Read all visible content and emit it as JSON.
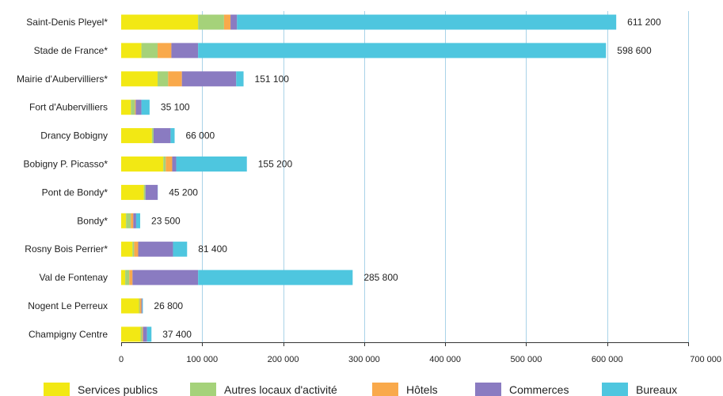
{
  "chart_data": {
    "type": "bar",
    "orientation": "horizontal",
    "stacked": true,
    "categories": [
      "Saint-Denis Pleyel*",
      "Stade de France*",
      "Mairie d'Aubervilliers*",
      "Fort d'Aubervilliers",
      "Drancy Bobigny",
      "Bobigny P. Picasso*",
      "Pont de Bondy*",
      "Bondy*",
      "Rosny Bois Perrier*",
      "Val de Fontenay",
      "Nogent Le Perreux",
      "Champigny Centre"
    ],
    "series": [
      {
        "name": "Services publics",
        "color": "#f2e814",
        "values": [
          95000,
          25000,
          45000,
          12000,
          38000,
          52000,
          28000,
          6000,
          14000,
          5000,
          22000,
          24000
        ]
      },
      {
        "name": "Autres locaux d'activité",
        "color": "#a5d27a",
        "values": [
          32000,
          20000,
          13000,
          5000,
          2000,
          3000,
          2000,
          6000,
          2000,
          5000,
          1000,
          2000
        ]
      },
      {
        "name": "Hôtels",
        "color": "#f9a94b",
        "values": [
          8000,
          17000,
          17000,
          1000,
          0,
          8000,
          0,
          3000,
          5000,
          4000,
          2000,
          1000
        ]
      },
      {
        "name": "Commerces",
        "color": "#8a7bc1",
        "values": [
          8000,
          33000,
          67000,
          7000,
          21000,
          5000,
          15000,
          3500,
          43000,
          81000,
          1000,
          5000
        ]
      },
      {
        "name": "Bureaux",
        "color": "#4ec6df",
        "values": [
          468200,
          503600,
          9100,
          10100,
          5000,
          87200,
          200,
          5000,
          17400,
          190800,
          800,
          5400
        ]
      }
    ],
    "totals": [
      "611 200",
      "598 600",
      "151 100",
      "35 100",
      "66 000",
      "155 200",
      "45 200",
      "23 500",
      "81 400",
      "285 800",
      "26 800",
      "37 400"
    ],
    "total_values": [
      611200,
      598600,
      151100,
      35100,
      66000,
      155200,
      45200,
      23500,
      81400,
      285800,
      26800,
      37400
    ],
    "xlim": [
      0,
      700000
    ],
    "xticks": [
      0,
      100000,
      200000,
      300000,
      400000,
      500000,
      600000,
      700000
    ],
    "xtick_labels": [
      "0",
      "100 000",
      "200 000",
      "300 000",
      "400 000",
      "500 000",
      "600 000",
      "700 000"
    ],
    "grid": "vertical",
    "legend_position": "bottom"
  }
}
